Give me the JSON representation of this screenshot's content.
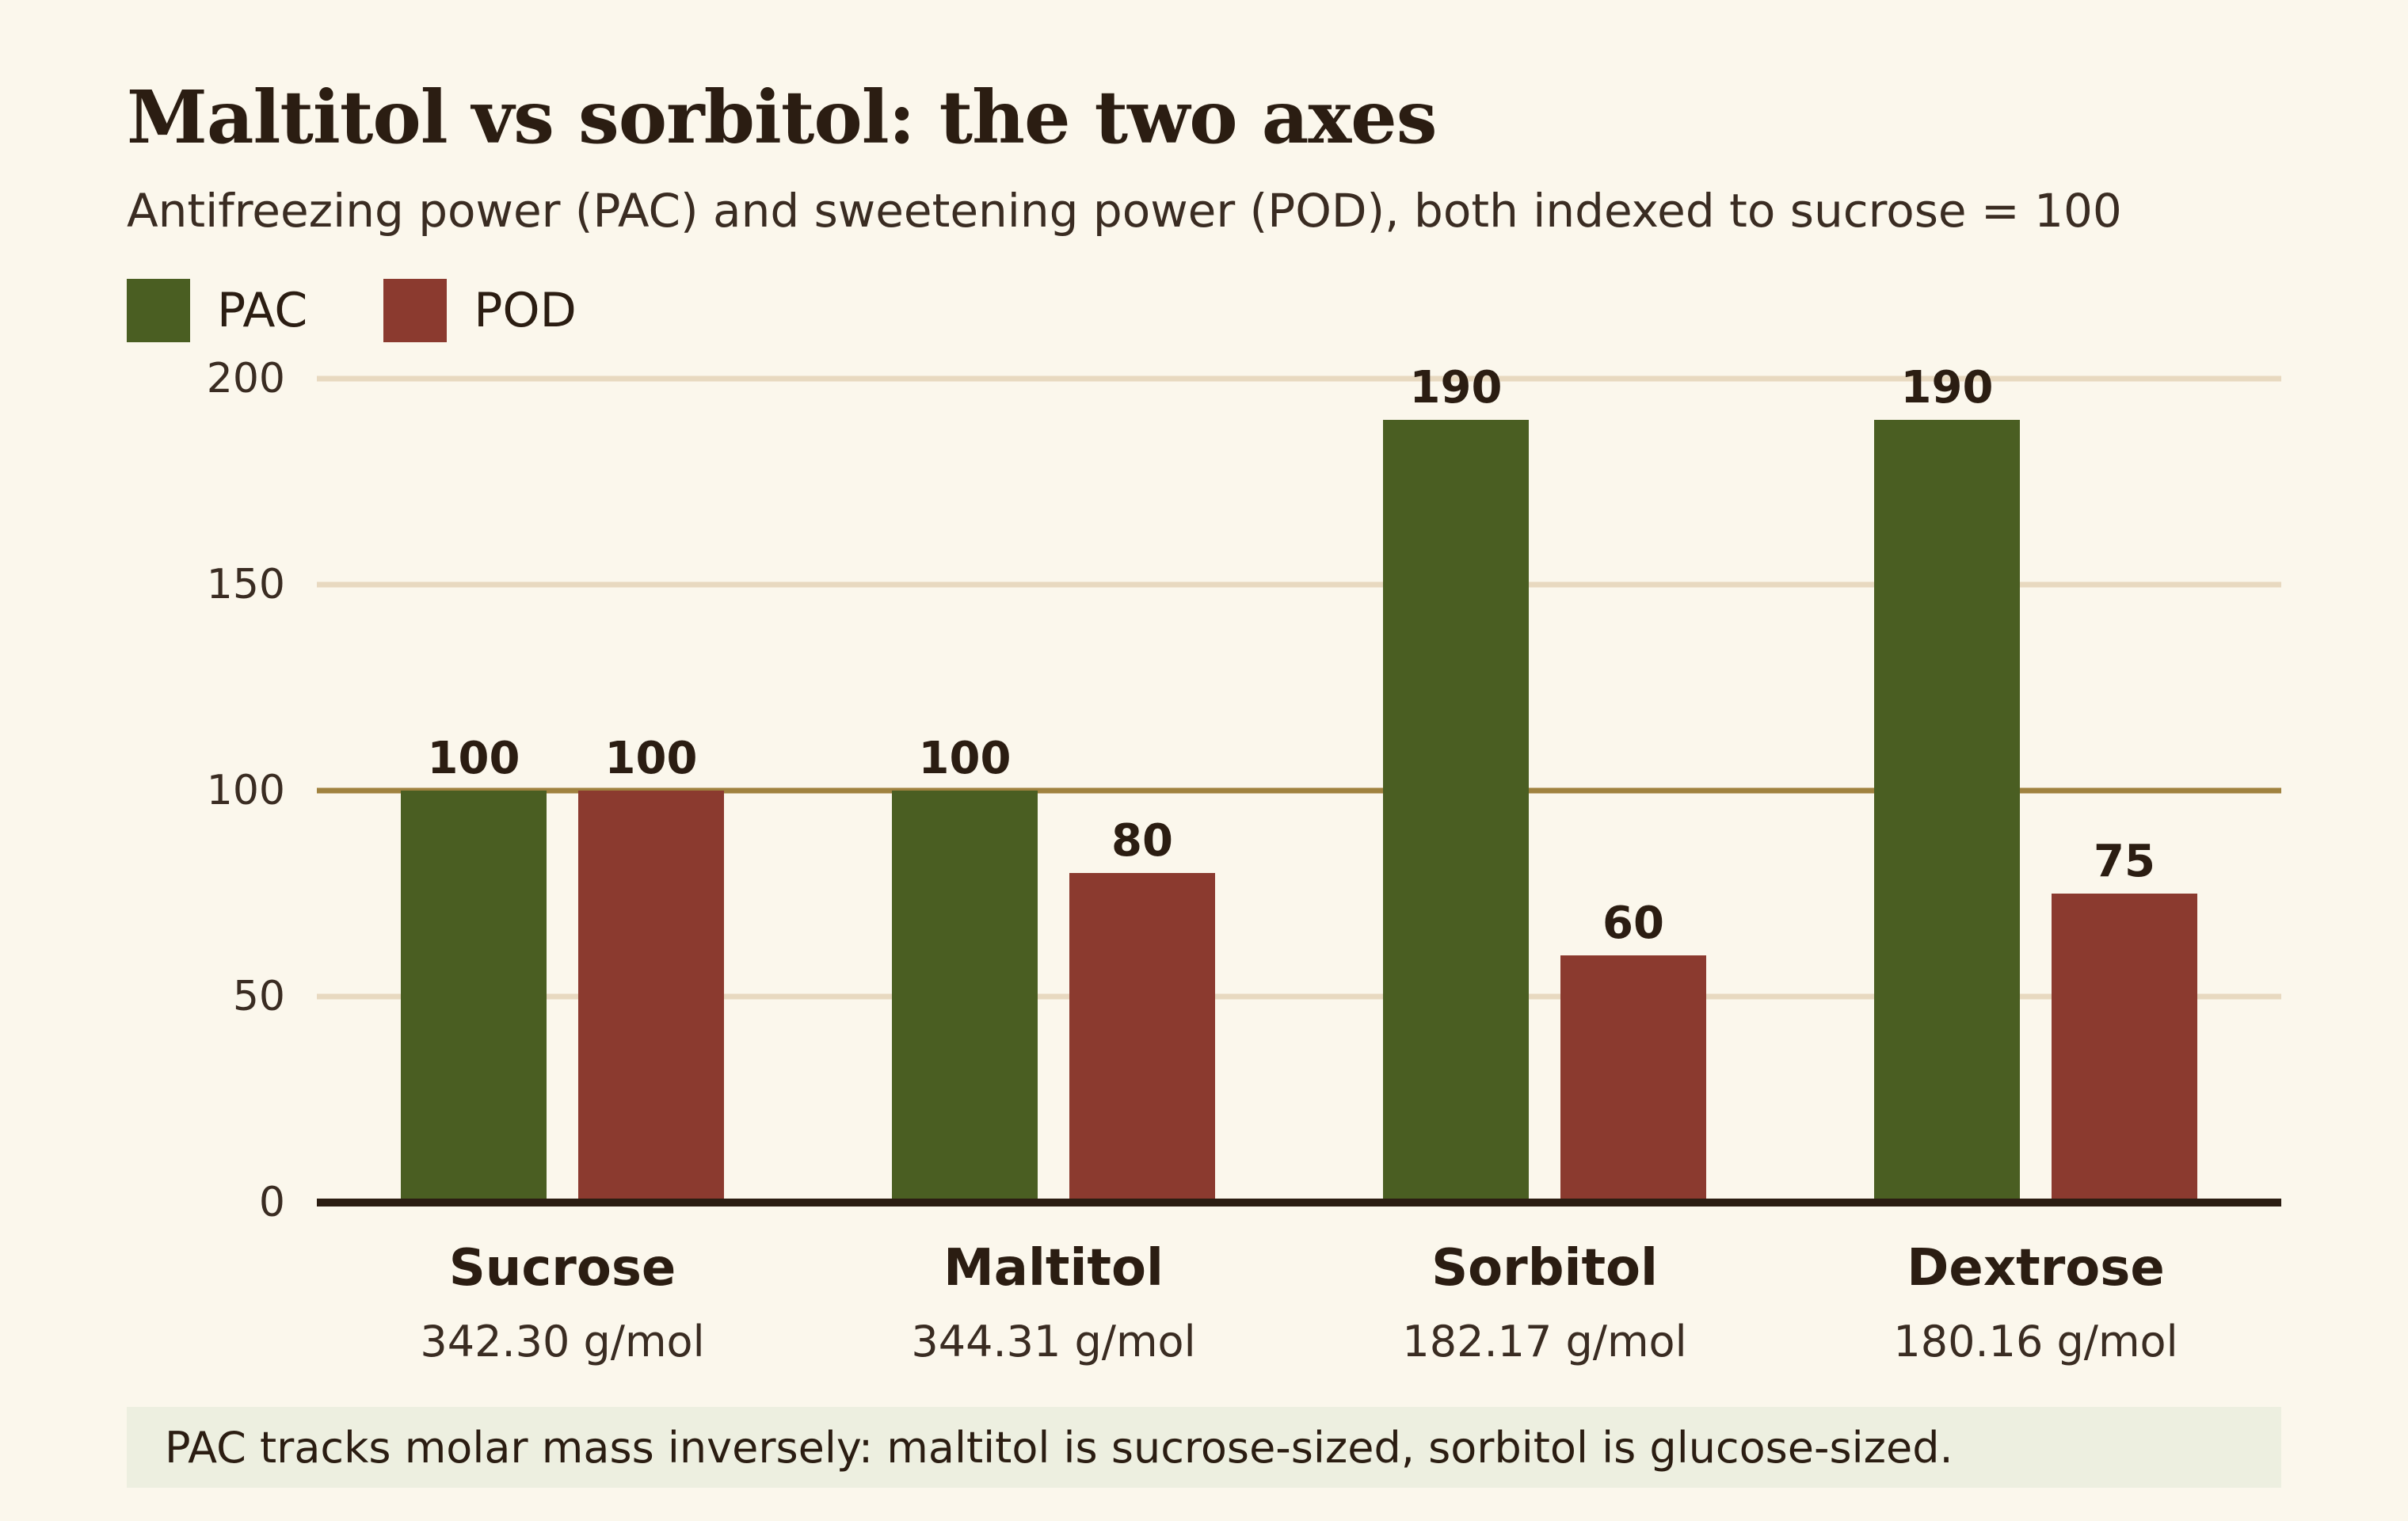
{
  "title": "Maltitol vs sorbitol: the two axes",
  "subtitle": "Antifreezing power (PAC) and sweetening power (POD), both indexed to sucrose = 100",
  "note": "PAC tracks molar mass inversely: maltitol is sucrose-sized, sorbitol is glucose-sized.",
  "colors": {
    "background": "#fbf7ec",
    "pac": "#4a5e22",
    "pod": "#8b3a2f",
    "gridline": "#e8d9c0",
    "reference_line": "#a0823f",
    "axis": "#2b1d12",
    "note_background": "#edefe0"
  },
  "chart_data": {
    "type": "bar",
    "categories": [
      "Sucrose",
      "Maltitol",
      "Sorbitol",
      "Dextrose"
    ],
    "category_sublabels": [
      "342.30 g/mol",
      "344.31 g/mol",
      "182.17 g/mol",
      "180.16 g/mol"
    ],
    "series": [
      {
        "name": "PAC",
        "values": [
          100,
          100,
          190,
          190
        ]
      },
      {
        "name": "POD",
        "values": [
          100,
          80,
          60,
          75
        ]
      }
    ],
    "ylim": [
      0,
      200
    ],
    "yticks": [
      0,
      50,
      100,
      150,
      200
    ],
    "reference_line": 100,
    "data_labels": [
      [
        "100",
        "100",
        "190",
        "190"
      ],
      [
        "100",
        "80",
        "60",
        "75"
      ]
    ],
    "xlabel": "",
    "ylabel": "",
    "grid": true,
    "legend": "top-left"
  }
}
